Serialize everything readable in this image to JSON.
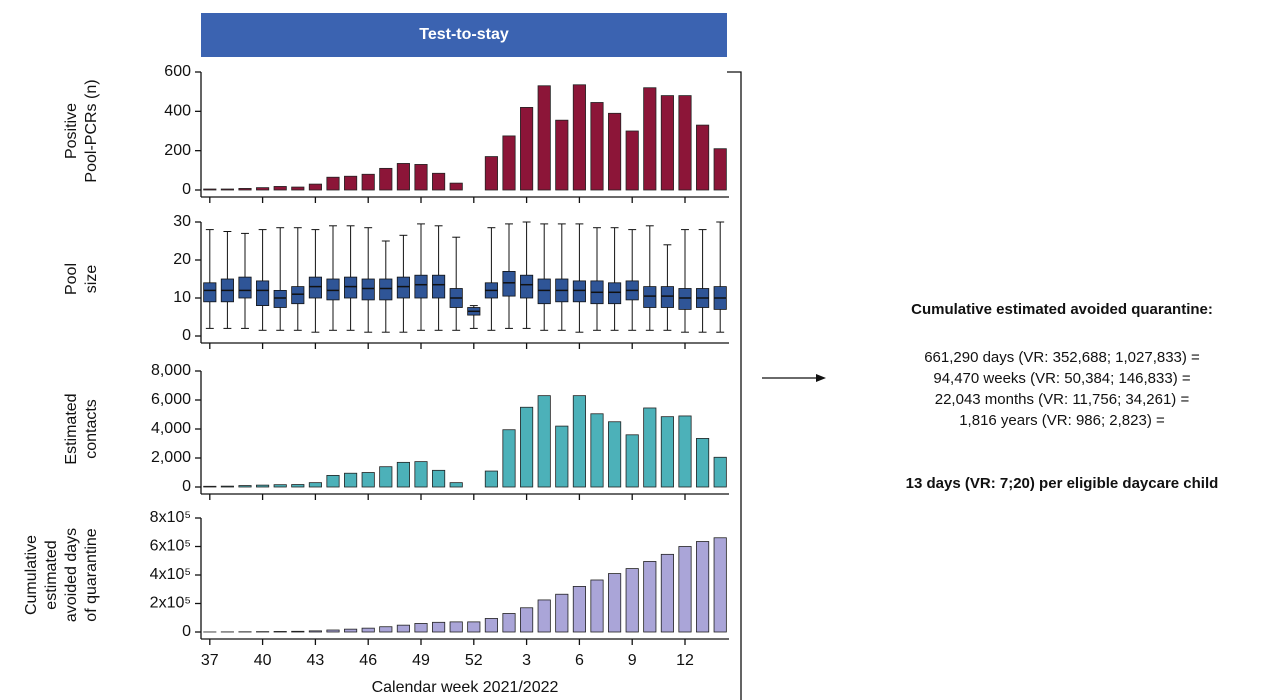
{
  "banner": "Test-to-stay",
  "summary": {
    "title": "Cumulative estimated avoided quarantine:",
    "lines": [
      "661,290 days (VR: 352,688; 1,027,833) =",
      "94,470 weeks (VR: 50,384; 146,833) =",
      "22,043 months (VR: 11,756; 34,261) =",
      "1,816 years (VR: 986; 2,823) ="
    ],
    "conclusion": "13 days (VR: 7;20) per eligible daycare child"
  },
  "chart_data": [
    {
      "type": "bar",
      "ylabel": [
        "Positive",
        "Pool-PCRs (n)"
      ],
      "color": "#8c1538",
      "values": [
        5,
        5,
        8,
        12,
        18,
        15,
        30,
        65,
        70,
        80,
        110,
        135,
        130,
        85,
        35,
        null,
        170,
        275,
        420,
        530,
        355,
        535,
        445,
        390,
        300,
        520,
        480,
        480,
        330,
        210
      ],
      "ylim": [
        0,
        600
      ],
      "yticks": [
        0,
        200,
        400,
        600
      ]
    },
    {
      "type": "box",
      "ylabel": [
        "Pool",
        "size"
      ],
      "color": "#2f5597",
      "whisker_low": [
        2,
        2,
        2,
        1.5,
        1.5,
        1.5,
        1,
        1.5,
        1.5,
        1,
        1,
        1,
        1.5,
        1.5,
        1.5,
        2,
        1.5,
        2,
        2,
        1.5,
        1.5,
        1,
        1.5,
        1.5,
        1.5,
        1.5,
        1.5,
        1,
        1,
        1
      ],
      "q1": [
        9,
        9,
        10,
        8,
        7.5,
        8.5,
        10,
        9.5,
        10,
        9.5,
        9.5,
        10,
        10,
        10,
        7.5,
        5.5,
        10,
        10.5,
        10,
        8.5,
        9,
        9,
        8.5,
        8.5,
        9.5,
        7.5,
        7.5,
        7,
        7.5,
        7
      ],
      "median": [
        12,
        12,
        12,
        12,
        10,
        11,
        13,
        12,
        13,
        12.5,
        12.5,
        13,
        13.5,
        13.5,
        10,
        6.5,
        12,
        14,
        13.5,
        12,
        12,
        12,
        11.5,
        11.5,
        12,
        10.5,
        10.5,
        10,
        10,
        10
      ],
      "q3": [
        14,
        15,
        15.5,
        14.5,
        12,
        13,
        15.5,
        15,
        15.5,
        15,
        15,
        15.5,
        16,
        16,
        12.5,
        7.5,
        14,
        17,
        16,
        15,
        15,
        14.5,
        14.5,
        14,
        14.5,
        13,
        13,
        12.5,
        12.5,
        13
      ],
      "whisker_high": [
        28,
        27.5,
        27,
        28,
        28.5,
        28.5,
        28,
        29,
        29,
        28.5,
        25,
        26.5,
        29.5,
        29,
        26,
        8,
        28.5,
        29.5,
        30,
        29.5,
        29.5,
        29.5,
        28.5,
        28.5,
        28,
        29,
        24,
        28,
        28,
        30
      ],
      "ylim": [
        0,
        30
      ],
      "yticks": [
        0,
        10,
        20,
        30
      ]
    },
    {
      "type": "bar",
      "ylabel": [
        "Estimated",
        "contacts"
      ],
      "color": "#4cb1b9",
      "values": [
        50,
        60,
        100,
        130,
        160,
        170,
        300,
        800,
        950,
        1000,
        1400,
        1700,
        1750,
        1150,
        300,
        null,
        1100,
        3950,
        5500,
        6300,
        4200,
        6300,
        5050,
        4500,
        3600,
        5450,
        4850,
        4900,
        3350,
        2050
      ],
      "ylim": [
        0,
        8000
      ],
      "yticks": [
        0,
        {
          "value": 2000,
          "label": "2,000"
        },
        {
          "value": 4000,
          "label": "4,000"
        },
        {
          "value": 6000,
          "label": "6,000"
        },
        {
          "value": 8000,
          "label": "8,000"
        }
      ]
    },
    {
      "type": "bar",
      "ylabel": [
        "Cumulative",
        "estimated",
        "avoided days",
        "of quarantine"
      ],
      "color": "#aaa5d8",
      "xlabel": "Calendar week 2021/2022",
      "categories": [
        "37",
        null,
        null,
        "40",
        null,
        null,
        "43",
        null,
        null,
        "46",
        null,
        null,
        "49",
        null,
        null,
        "52",
        null,
        null,
        "3",
        null,
        null,
        "6",
        null,
        null,
        "9",
        null,
        null,
        "12",
        null,
        null
      ],
      "values": [
        300,
        800,
        1500,
        2500,
        3800,
        5000,
        8000,
        14000,
        20000,
        27000,
        37000,
        48000,
        60000,
        68000,
        71000,
        71000,
        95000,
        130000,
        170000,
        225000,
        265000,
        320000,
        365000,
        410000,
        445000,
        495000,
        545000,
        600000,
        635000,
        661290
      ],
      "ylim": [
        0,
        800000
      ],
      "yticks": [
        0,
        {
          "value": 200000,
          "label": "2x10⁵"
        },
        {
          "value": 400000,
          "label": "4x10⁵"
        },
        {
          "value": 600000,
          "label": "6x10⁵"
        },
        {
          "value": 800000,
          "label": "8x10⁵"
        }
      ]
    }
  ]
}
